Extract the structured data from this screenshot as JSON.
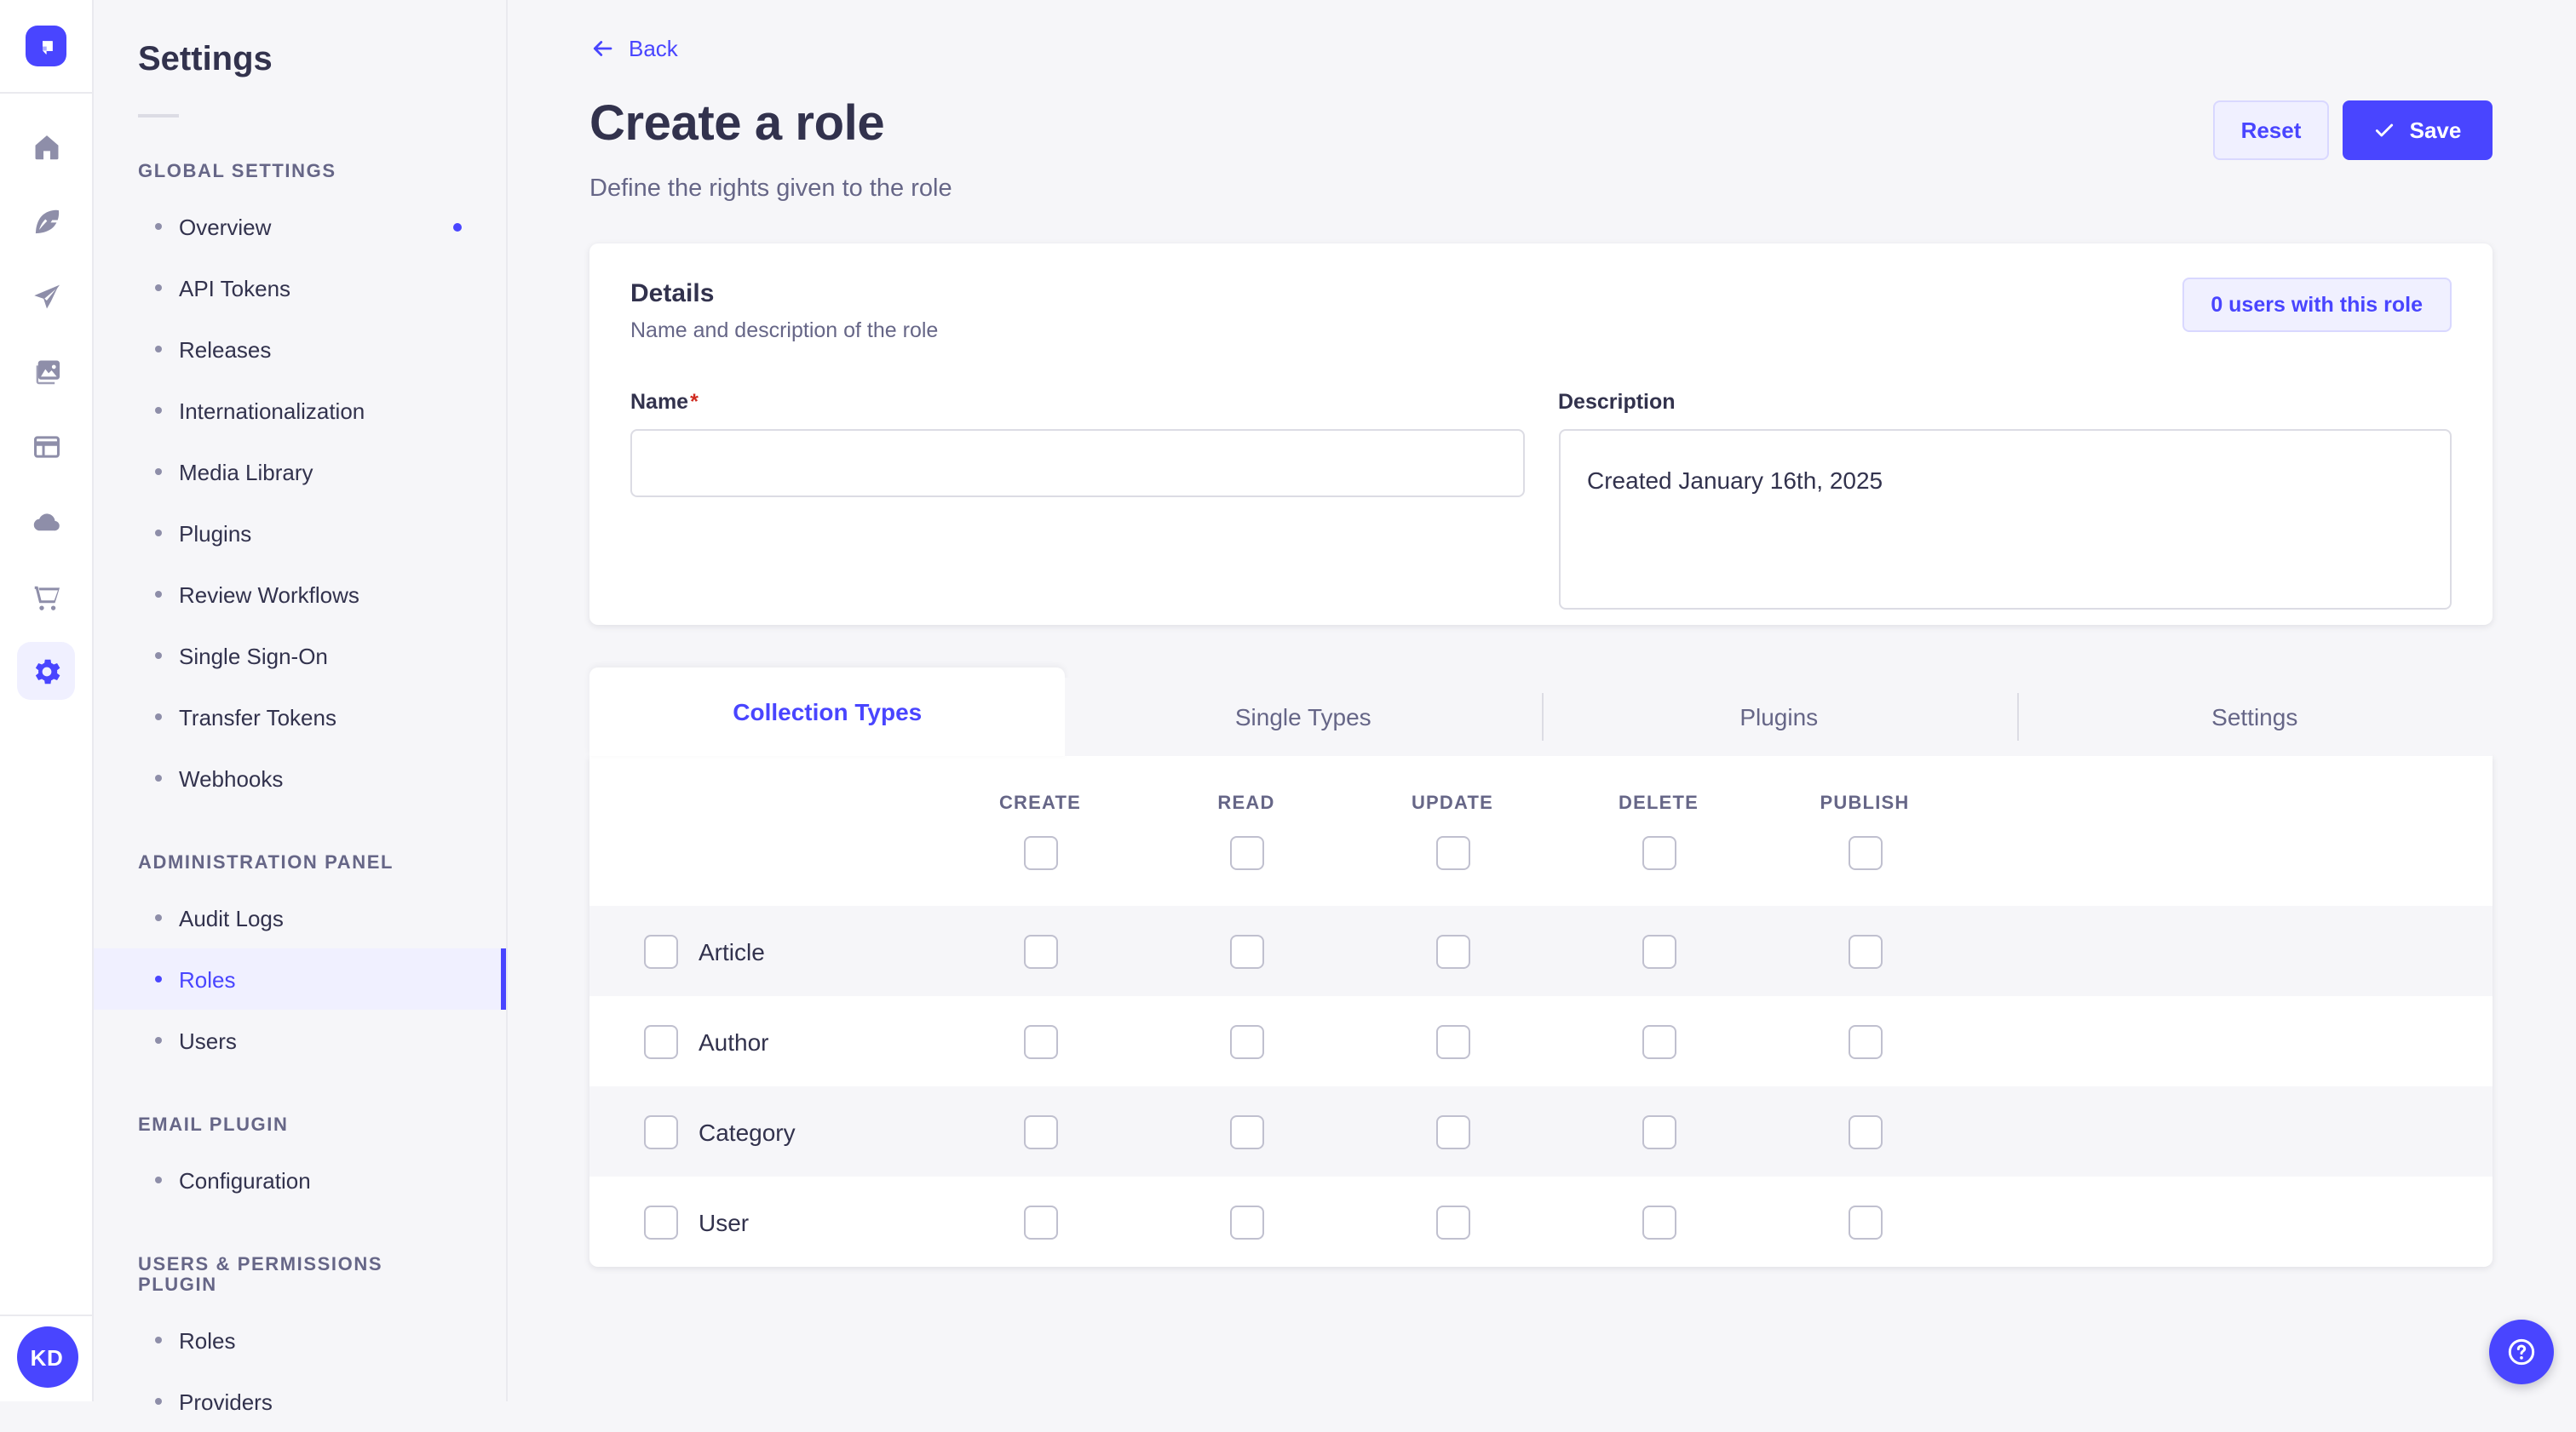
{
  "colors": {
    "accent": "#4945ff",
    "accent_bg": "#f0f0ff",
    "accent_border": "#d9d8ff",
    "page_bg": "#f6f6f9",
    "border": "#eaeaef",
    "text_dark": "#32324d",
    "text_muted": "#666687",
    "icon_gray": "#8e8ea9",
    "required_red": "#d02b20"
  },
  "app_sidebar": {
    "logo_icon": "strapi-logo",
    "icons": [
      "home",
      "feather",
      "send",
      "media",
      "layout",
      "cloud",
      "cart",
      "settings"
    ],
    "active_icon": "settings",
    "user_initials": "KD"
  },
  "settings_nav": {
    "title": "Settings",
    "sections": [
      {
        "label": "GLOBAL SETTINGS",
        "items": [
          {
            "label": "Overview",
            "notification": true
          },
          {
            "label": "API Tokens"
          },
          {
            "label": "Releases"
          },
          {
            "label": "Internationalization"
          },
          {
            "label": "Media Library"
          },
          {
            "label": "Plugins"
          },
          {
            "label": "Review Workflows"
          },
          {
            "label": "Single Sign-On"
          },
          {
            "label": "Transfer Tokens"
          },
          {
            "label": "Webhooks"
          }
        ]
      },
      {
        "label": "ADMINISTRATION PANEL",
        "items": [
          {
            "label": "Audit Logs"
          },
          {
            "label": "Roles",
            "active": true
          },
          {
            "label": "Users"
          }
        ]
      },
      {
        "label": "EMAIL PLUGIN",
        "items": [
          {
            "label": "Configuration"
          }
        ]
      },
      {
        "label": "USERS & PERMISSIONS PLUGIN",
        "items": [
          {
            "label": "Roles"
          },
          {
            "label": "Providers"
          }
        ]
      }
    ]
  },
  "page": {
    "back_label": "Back",
    "title": "Create a role",
    "subtitle": "Define the rights given to the role",
    "reset_label": "Reset",
    "save_label": "Save"
  },
  "details_card": {
    "title": "Details",
    "subtitle": "Name and description of the role",
    "users_badge": "0 users with this role",
    "name_label": "Name",
    "name_required": "*",
    "name_value": "",
    "description_label": "Description",
    "description_value": "Created January 16th, 2025"
  },
  "permissions_card": {
    "tabs": [
      {
        "label": "Collection Types",
        "active": true
      },
      {
        "label": "Single Types"
      },
      {
        "label": "Plugins"
      },
      {
        "label": "Settings"
      }
    ],
    "columns": [
      "CREATE",
      "READ",
      "UPDATE",
      "DELETE",
      "PUBLISH"
    ],
    "header_checked": [
      false,
      false,
      false,
      false,
      false
    ],
    "rows": [
      {
        "label": "Article",
        "selected": false,
        "checked": [
          false,
          false,
          false,
          false,
          false
        ]
      },
      {
        "label": "Author",
        "selected": false,
        "checked": [
          false,
          false,
          false,
          false,
          false
        ]
      },
      {
        "label": "Category",
        "selected": false,
        "checked": [
          false,
          false,
          false,
          false,
          false
        ]
      },
      {
        "label": "User",
        "selected": false,
        "checked": [
          false,
          false,
          false,
          false,
          false
        ]
      }
    ]
  },
  "floating": {
    "help_icon": "question-mark"
  }
}
